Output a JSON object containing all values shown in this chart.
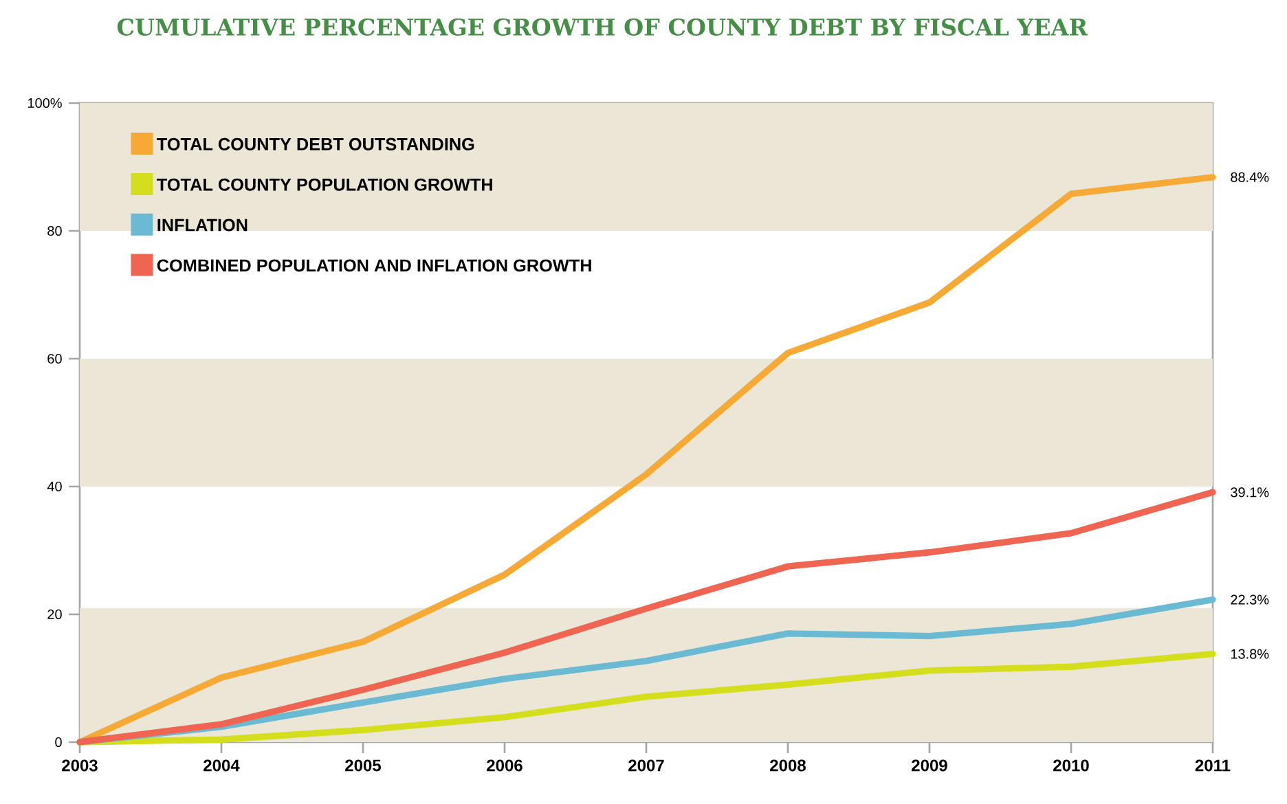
{
  "chart_data": {
    "type": "line",
    "title": "CUMULATIVE PERCENTAGE GROWTH OF COUNTY DEBT BY FISCAL YEAR",
    "categories": [
      "2003",
      "2004",
      "2005",
      "2006",
      "2007",
      "2008",
      "2009",
      "2010",
      "2011"
    ],
    "series": [
      {
        "name": "TOTAL COUNTY DEBT OUTSTANDING",
        "color": "#f6a935",
        "values": [
          0,
          10.1,
          15.7,
          26.2,
          41.9,
          60.9,
          68.8,
          85.8,
          88.4
        ],
        "value_labels": [
          null,
          null,
          null,
          null,
          null,
          null,
          null,
          null,
          "88.4%"
        ]
      },
      {
        "name": "TOTAL COUNTY POPULATION GROWTH",
        "color": "#d4de1c",
        "values": [
          0,
          0.4,
          1.9,
          3.9,
          7.1,
          9.0,
          11.2,
          11.8,
          13.8
        ],
        "value_labels": [
          null,
          null,
          null,
          null,
          null,
          null,
          null,
          null,
          "13.8%"
        ]
      },
      {
        "name": "INFLATION",
        "color": "#6bbad3",
        "values": [
          0,
          2.4,
          6.2,
          9.9,
          12.7,
          17.0,
          16.6,
          18.5,
          22.3
        ],
        "value_labels": [
          null,
          null,
          null,
          null,
          null,
          null,
          null,
          null,
          "22.3%"
        ]
      },
      {
        "name": "COMBINED POPULATION AND INFLATION GROWTH",
        "color": "#f06551",
        "values": [
          0,
          2.8,
          8.2,
          14.0,
          20.9,
          27.5,
          29.7,
          32.7,
          39.1
        ],
        "value_labels": [
          null,
          null,
          null,
          null,
          null,
          null,
          null,
          null,
          "39.1%"
        ]
      }
    ],
    "ylim": [
      0,
      100
    ],
    "yticks": [
      0,
      20,
      40,
      60,
      80,
      {
        "value": 100,
        "label": "100%"
      }
    ],
    "bands": [
      {
        "axis": "y",
        "from": 0,
        "to": 21,
        "color": "#ece6d6"
      },
      {
        "axis": "y",
        "from": 40,
        "to": 60,
        "color": "#ece6d6"
      },
      {
        "axis": "y",
        "from": 80,
        "to": 100,
        "color": "#ece6d6"
      }
    ],
    "legend": "top left",
    "marker": "none",
    "line_style": "solid",
    "grid": false
  }
}
